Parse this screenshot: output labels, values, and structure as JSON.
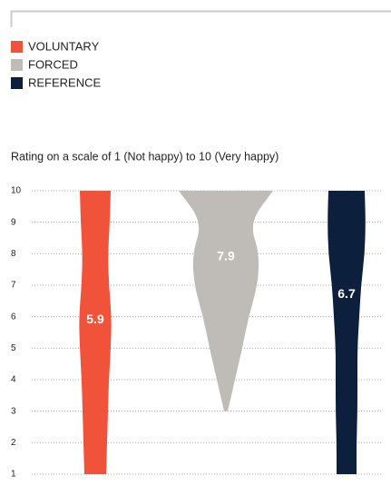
{
  "chart_data": {
    "type": "violin",
    "subtitle": "Rating on a scale of 1 (Not happy) to 10 (Very happy)",
    "levels": [
      1,
      2,
      3,
      4,
      5,
      6,
      7,
      8,
      9,
      10
    ],
    "ylim": [
      1,
      10
    ],
    "yticks": [
      1,
      2,
      3,
      4,
      5,
      6,
      7,
      8,
      9,
      10
    ],
    "grid": true,
    "series": [
      {
        "name": "VOLUNTARY",
        "color": "#f0523a",
        "median": 5.9,
        "widths": [
          12,
          13,
          14,
          15,
          17,
          18,
          15,
          14,
          16,
          17
        ]
      },
      {
        "name": "FORCED",
        "color": "#bfbbb6",
        "median": 7.9,
        "widths": [
          null,
          null,
          2,
          10,
          18,
          25,
          35,
          37,
          26,
          52
        ]
      },
      {
        "name": "REFERENCE",
        "color": "#0c1f3d",
        "median": 6.7,
        "widths": [
          11,
          11,
          12,
          12,
          12,
          14,
          16,
          20,
          21,
          20
        ]
      }
    ]
  }
}
